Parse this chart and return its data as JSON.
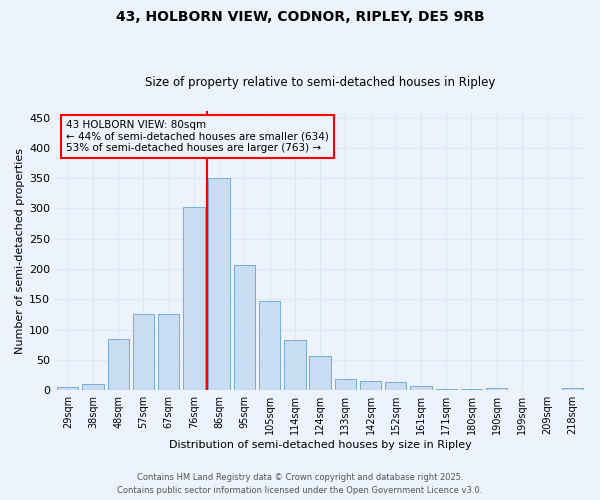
{
  "title1": "43, HOLBORN VIEW, CODNOR, RIPLEY, DE5 9RB",
  "title2": "Size of property relative to semi-detached houses in Ripley",
  "xlabel": "Distribution of semi-detached houses by size in Ripley",
  "ylabel": "Number of semi-detached properties",
  "categories": [
    "29sqm",
    "38sqm",
    "48sqm",
    "57sqm",
    "67sqm",
    "76sqm",
    "86sqm",
    "95sqm",
    "105sqm",
    "114sqm",
    "124sqm",
    "133sqm",
    "142sqm",
    "152sqm",
    "161sqm",
    "171sqm",
    "180sqm",
    "190sqm",
    "199sqm",
    "209sqm",
    "218sqm"
  ],
  "values": [
    5,
    10,
    85,
    125,
    125,
    303,
    350,
    207,
    147,
    83,
    57,
    18,
    15,
    13,
    7,
    2,
    2,
    3,
    1,
    1,
    3
  ],
  "bar_color": "#c8ddf2",
  "bar_edge_color": "#7aadd4",
  "grid_color": "#dce8f5",
  "background_color": "#edf3fc",
  "vline_color": "red",
  "annotation_title": "43 HOLBORN VIEW: 80sqm",
  "annotation_line1": "← 44% of semi-detached houses are smaller (634)",
  "annotation_line2": "53% of semi-detached houses are larger (763) →",
  "annotation_box_color": "red",
  "footer1": "Contains HM Land Registry data © Crown copyright and database right 2025.",
  "footer2": "Contains public sector information licensed under the Open Government Licence v3.0.",
  "ylim": [
    0,
    460
  ],
  "yticks": [
    0,
    50,
    100,
    150,
    200,
    250,
    300,
    350,
    400,
    450
  ]
}
